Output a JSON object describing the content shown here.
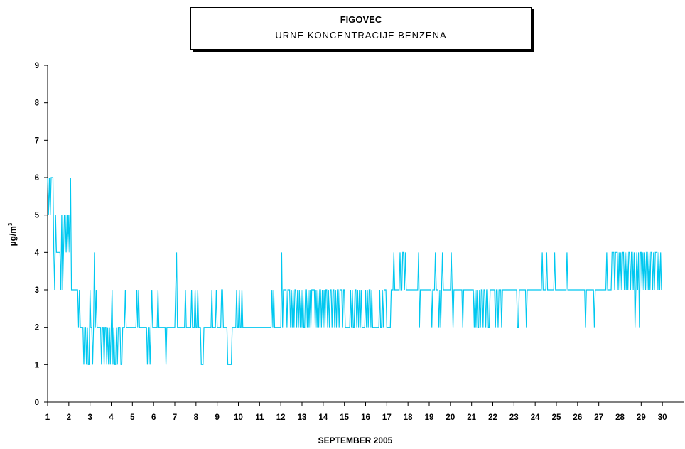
{
  "chart_data": {
    "type": "line",
    "title": "FIGOVEC",
    "subtitle": "URNE KONCENTRACIJE BENZENA",
    "xlabel": "SEPTEMBER 2005",
    "ylabel": "µg/m",
    "ylabel_superscript": "3",
    "x_tick_labels": [
      "1",
      "2",
      "3",
      "4",
      "5",
      "6",
      "7",
      "8",
      "9",
      "10",
      "11",
      "12",
      "13",
      "14",
      "15",
      "16",
      "17",
      "18",
      "19",
      "20",
      "21",
      "22",
      "23",
      "24",
      "25",
      "26",
      "27",
      "28",
      "29",
      "30"
    ],
    "y_tick_labels": [
      "0",
      "1",
      "2",
      "3",
      "4",
      "5",
      "6",
      "7",
      "8",
      "9"
    ],
    "ylim": [
      0,
      9
    ],
    "xlim": [
      1,
      31
    ],
    "grid": false,
    "legend": "none",
    "color": "#00c8f0",
    "series": [
      {
        "x_start_day": 1,
        "step_hours": 1,
        "values": [
          6,
          5,
          6,
          5,
          6,
          6,
          6,
          4,
          3,
          5,
          4,
          4,
          4,
          4,
          4,
          3,
          5,
          3,
          4,
          5,
          5,
          4,
          5,
          4,
          5,
          4,
          6,
          3,
          3,
          3,
          3,
          3,
          3,
          3,
          3,
          2,
          3,
          2,
          2,
          2,
          2,
          1,
          2,
          2,
          1,
          2,
          1,
          1,
          3,
          2,
          2,
          1,
          2,
          4,
          2,
          3,
          2,
          2,
          2,
          2,
          2,
          1,
          2,
          2,
          1,
          2,
          2,
          1,
          2,
          1,
          2,
          1,
          2,
          3,
          1,
          2,
          1,
          1,
          2,
          1,
          2,
          2,
          2,
          1,
          1,
          2,
          2,
          2,
          3,
          2,
          2,
          2,
          2,
          2,
          2,
          2,
          2,
          2,
          2,
          2,
          2,
          3,
          2,
          3,
          2,
          2,
          2,
          2,
          2,
          2,
          2,
          2,
          2,
          1,
          2,
          2,
          1,
          2,
          3,
          2,
          2,
          2,
          2,
          2,
          2,
          3,
          2,
          2,
          2,
          2,
          2,
          2,
          2,
          2,
          1,
          2,
          2,
          2,
          2,
          2,
          2,
          2,
          2,
          2,
          2,
          3,
          4,
          2,
          2,
          2,
          2,
          2,
          2,
          2,
          2,
          2,
          3,
          2,
          2,
          2,
          2,
          2,
          2,
          3,
          2,
          2,
          2,
          3,
          2,
          2,
          3,
          2,
          2,
          2,
          1,
          1,
          1,
          2,
          2,
          2,
          2,
          2,
          2,
          2,
          2,
          2,
          3,
          2,
          2,
          2,
          2,
          3,
          2,
          2,
          2,
          2,
          2,
          3,
          3,
          2,
          2,
          2,
          2,
          2,
          1,
          1,
          1,
          1,
          1,
          2,
          2,
          2,
          2,
          2,
          3,
          2,
          2,
          3,
          2,
          2,
          3,
          2,
          2,
          2,
          2,
          2,
          2,
          2,
          2,
          2,
          2,
          2,
          2,
          2,
          2,
          2,
          2,
          2,
          2,
          2,
          2,
          2,
          2,
          2,
          2,
          2,
          2,
          2,
          2,
          2,
          2,
          2,
          2,
          2,
          3,
          2,
          3,
          2,
          2,
          2,
          2,
          2,
          2,
          2,
          2,
          4,
          2,
          3,
          3,
          3,
          3,
          2,
          3,
          3,
          3,
          2,
          3,
          2,
          3,
          2,
          3,
          3,
          2,
          3,
          2,
          3,
          2,
          3,
          2,
          3,
          2,
          2,
          3,
          3,
          2,
          3,
          2,
          3,
          2,
          3,
          3,
          3,
          3,
          2,
          3,
          2,
          3,
          2,
          3,
          3,
          2,
          3,
          2,
          3,
          2,
          3,
          3,
          2,
          3,
          2,
          3,
          3,
          2,
          3,
          3,
          2,
          3,
          2,
          3,
          3,
          2,
          3,
          3,
          3,
          2,
          3,
          3,
          2,
          2,
          2,
          2,
          2,
          2,
          3,
          2,
          3,
          2,
          2,
          3,
          3,
          2,
          3,
          2,
          3,
          2,
          3,
          2,
          2,
          2,
          2,
          3,
          2,
          3,
          2,
          3,
          3,
          2,
          3,
          2,
          2,
          2,
          2,
          2,
          2,
          2,
          2,
          3,
          2,
          2,
          3,
          2,
          3,
          3,
          3,
          2,
          2,
          2,
          2,
          2,
          3,
          3,
          3,
          4,
          3,
          3,
          3,
          3,
          3,
          3,
          4,
          3,
          3,
          4,
          4,
          3,
          4,
          3,
          3,
          3,
          3,
          3,
          3,
          3,
          3,
          3,
          3,
          3,
          3,
          3,
          3,
          4,
          2,
          3,
          3,
          3,
          3,
          3,
          3,
          3,
          3,
          3,
          3,
          3,
          3,
          3,
          2,
          3,
          3,
          3,
          4,
          3,
          3,
          3,
          2,
          3,
          2,
          3,
          4,
          3,
          3,
          3,
          3,
          3,
          3,
          3,
          3,
          3,
          4,
          3,
          2,
          3,
          3,
          3,
          3,
          3,
          3,
          3,
          3,
          3,
          3,
          2,
          3,
          3,
          3,
          3,
          3,
          3,
          3,
          3,
          3,
          3,
          3,
          3,
          2,
          3,
          2,
          3,
          2,
          2,
          3,
          2,
          3,
          3,
          2,
          3,
          3,
          2,
          3,
          3,
          2,
          2,
          3,
          3,
          3,
          3,
          3,
          3,
          2,
          3,
          3,
          2,
          3,
          3,
          3,
          2,
          3,
          3,
          3,
          3,
          3,
          3,
          3,
          3,
          3,
          3,
          3,
          3,
          3,
          3,
          3,
          3,
          3,
          2,
          2,
          3,
          3,
          3,
          3,
          3,
          3,
          3,
          3,
          2,
          3,
          3,
          3,
          3,
          3,
          3,
          3,
          3,
          3,
          3,
          3,
          3,
          3,
          3,
          3,
          3,
          3,
          4,
          3,
          3,
          3,
          3,
          4,
          3,
          3,
          3,
          3,
          3,
          3,
          3,
          3,
          4,
          3,
          3,
          3,
          3,
          3,
          3,
          3,
          3,
          3,
          3,
          3,
          3,
          3,
          4,
          3,
          3,
          3,
          3,
          3,
          3,
          3,
          3,
          3,
          3,
          3,
          3,
          3,
          3,
          3,
          3,
          3,
          3,
          3,
          3,
          2,
          3,
          3,
          3,
          3,
          3,
          3,
          3,
          3,
          3,
          2,
          3,
          3,
          3,
          3,
          3,
          3,
          3,
          3,
          3,
          3,
          3,
          3,
          3,
          4,
          3,
          3,
          3,
          3,
          3,
          4,
          4,
          4,
          3,
          4,
          4,
          4,
          3,
          4,
          3,
          4,
          3,
          4,
          4,
          3,
          4,
          3,
          4,
          3,
          4,
          4,
          3,
          4,
          4,
          3,
          4,
          2,
          3,
          4,
          3,
          4,
          2,
          4,
          4,
          3,
          4,
          3,
          4,
          3,
          4,
          4,
          3,
          4,
          3,
          4,
          4,
          3,
          4,
          3,
          4,
          4,
          4,
          3,
          4,
          3,
          4,
          3
        ]
      }
    ]
  }
}
